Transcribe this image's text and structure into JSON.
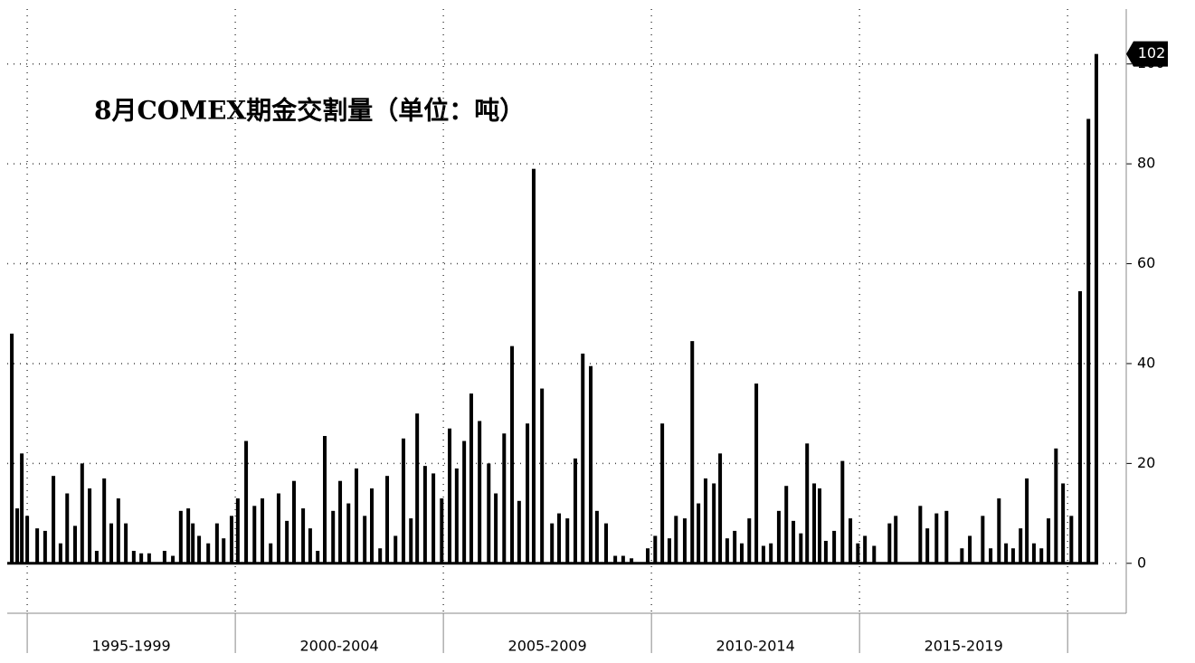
{
  "chart_data": {
    "type": "bar",
    "title": "8月COMEX期金交割量（单位：吨）",
    "x": [
      1994.63,
      1994.76,
      1994.87,
      1995.0,
      1995.24,
      1995.43,
      1995.63,
      1995.8,
      1995.96,
      1996.15,
      1996.32,
      1996.5,
      1996.67,
      1996.85,
      1997.02,
      1997.19,
      1997.37,
      1997.56,
      1997.74,
      1997.93,
      1998.3,
      1998.5,
      1998.69,
      1998.87,
      1998.98,
      1999.13,
      1999.35,
      1999.56,
      1999.72,
      1999.91,
      2000.06,
      2000.26,
      2000.46,
      2000.65,
      2000.85,
      2001.04,
      2001.24,
      2001.41,
      2001.63,
      2001.8,
      2001.98,
      2002.15,
      2002.35,
      2002.52,
      2002.72,
      2002.91,
      2003.11,
      2003.28,
      2003.48,
      2003.65,
      2003.85,
      2004.04,
      2004.22,
      2004.37,
      2004.56,
      2004.76,
      2004.96,
      2005.15,
      2005.32,
      2005.5,
      2005.67,
      2005.87,
      2006.09,
      2006.26,
      2006.46,
      2006.65,
      2006.82,
      2007.02,
      2007.17,
      2007.37,
      2007.61,
      2007.78,
      2007.98,
      2008.17,
      2008.35,
      2008.54,
      2008.69,
      2008.91,
      2009.13,
      2009.32,
      2009.52,
      2009.91,
      2010.09,
      2010.26,
      2010.43,
      2010.59,
      2010.8,
      2010.98,
      2011.13,
      2011.3,
      2011.5,
      2011.65,
      2011.82,
      2012.0,
      2012.17,
      2012.35,
      2012.52,
      2012.69,
      2012.87,
      2013.06,
      2013.24,
      2013.41,
      2013.59,
      2013.74,
      2013.91,
      2014.04,
      2014.19,
      2014.39,
      2014.59,
      2014.78,
      2014.96,
      2015.13,
      2015.35,
      2015.72,
      2015.87,
      2016.46,
      2016.63,
      2016.85,
      2017.09,
      2017.46,
      2017.65,
      2017.96,
      2018.15,
      2018.35,
      2018.52,
      2018.69,
      2018.87,
      2019.02,
      2019.19,
      2019.37,
      2019.54,
      2019.72,
      2019.89,
      2020.09,
      2020.3,
      2020.5,
      2020.69
    ],
    "values": [
      46,
      11,
      22,
      9.5,
      7,
      6.5,
      17.5,
      4,
      14,
      7.5,
      20,
      15,
      2.5,
      17,
      8,
      13,
      8,
      2.5,
      2,
      2,
      2.5,
      1.5,
      10.5,
      11,
      8,
      5.5,
      4,
      8,
      5,
      9.5,
      13,
      24.5,
      11.5,
      13,
      4,
      14,
      8.5,
      16.5,
      11,
      7,
      2.5,
      25.5,
      10.5,
      16.5,
      12,
      19,
      9.5,
      15,
      3,
      17.5,
      5.5,
      25,
      9,
      30,
      19.5,
      18,
      13,
      27,
      19,
      24.5,
      34,
      28.5,
      20,
      14,
      26,
      43.5,
      12.5,
      28,
      79,
      35,
      8,
      10,
      9,
      21,
      42,
      39.5,
      10.5,
      8,
      1.5,
      1.5,
      1,
      3,
      5.5,
      28,
      5,
      9.5,
      9,
      44.5,
      12,
      17,
      16,
      22,
      5,
      6.5,
      4,
      9,
      36,
      3.5,
      4,
      10.5,
      15.5,
      8.5,
      6,
      24,
      16,
      15,
      4.5,
      6.5,
      20.5,
      9,
      4,
      5.5,
      3.5,
      8,
      9.5,
      11.5,
      7,
      10,
      10.5,
      3,
      5.5,
      9.5,
      3,
      13,
      4,
      3,
      7,
      17,
      4,
      3,
      9,
      23,
      16,
      9.5,
      54.5,
      89,
      102
    ],
    "color": "#000000",
    "xlim": [
      1994.52,
      2021.3
    ],
    "xticks": [
      1995,
      2000,
      2005,
      2010,
      2015,
      2020
    ],
    "x_periods": [
      {
        "label": "1995-1999",
        "from": 1995,
        "to": 2000
      },
      {
        "label": "2000-2004",
        "from": 2000,
        "to": 2005
      },
      {
        "label": "2005-2009",
        "from": 2005,
        "to": 2010
      },
      {
        "label": "2010-2014",
        "from": 2010,
        "to": 2015
      },
      {
        "label": "2015-2019",
        "from": 2015,
        "to": 2020
      }
    ],
    "ylim": [
      -10,
      111
    ],
    "yticks": [
      0,
      20,
      40,
      60,
      80,
      100
    ],
    "grid": true,
    "y_axis_side": "right"
  }
}
